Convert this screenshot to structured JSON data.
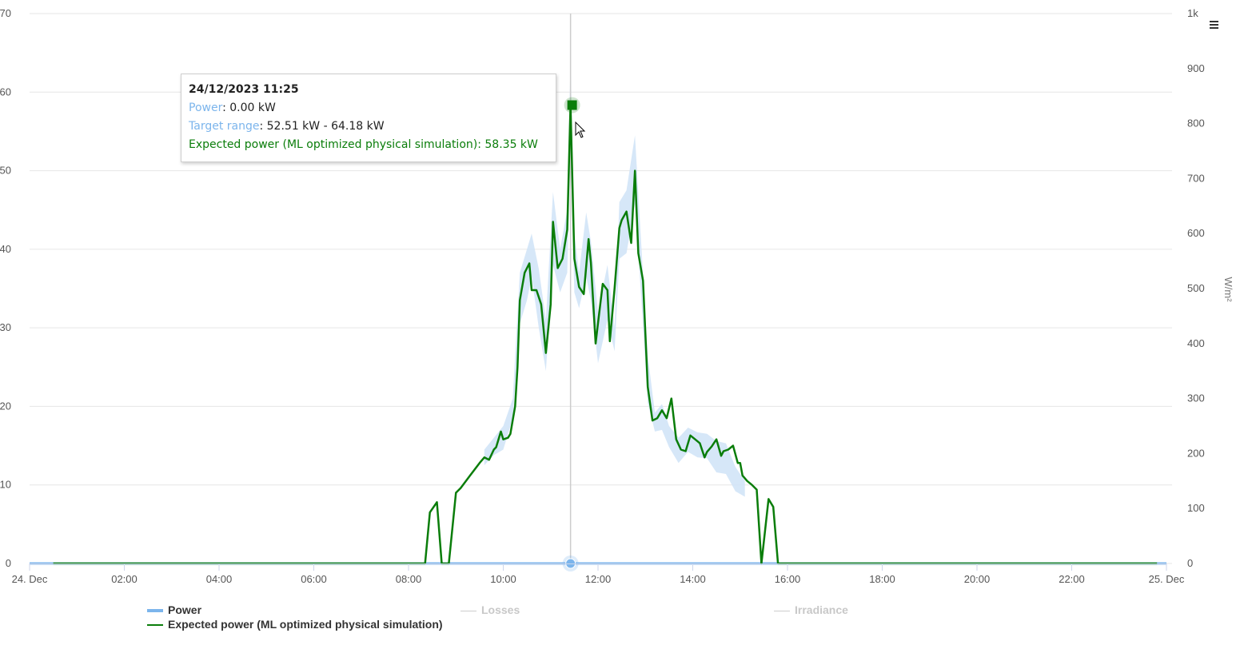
{
  "chart_data": {
    "type": "line",
    "x_axis": {
      "tick_labels": [
        "24. Dec",
        "02:00",
        "04:00",
        "06:00",
        "08:00",
        "10:00",
        "12:00",
        "14:00",
        "16:00",
        "18:00",
        "20:00",
        "22:00",
        "25. Dec"
      ],
      "range_hours": [
        0,
        24
      ]
    },
    "y_axis_left": {
      "ticks": [
        "0",
        "10",
        "20",
        "30",
        "40",
        "50",
        "60",
        "70"
      ],
      "range": [
        0,
        70
      ]
    },
    "y_axis_right": {
      "title": "W/m²",
      "ticks": [
        "0",
        "100",
        "200",
        "300",
        "400",
        "500",
        "600",
        "700",
        "800",
        "900",
        "1k"
      ],
      "range": [
        0,
        1000
      ]
    },
    "series": [
      {
        "name": "Expected power (ML optimized physical simulation)",
        "color": "#0a7d0a",
        "x_hours": [
          0.5,
          8.35,
          8.45,
          8.6,
          8.7,
          8.85,
          9.0,
          9.1,
          9.3,
          9.5,
          9.6,
          9.7,
          9.8,
          9.85,
          9.95,
          10.0,
          10.1,
          10.15,
          10.25,
          10.3,
          10.35,
          10.45,
          10.55,
          10.6,
          10.7,
          10.8,
          10.9,
          11.0,
          11.05,
          11.15,
          11.25,
          11.35,
          11.42,
          11.5,
          11.6,
          11.7,
          11.8,
          11.85,
          11.95,
          12.0,
          12.1,
          12.2,
          12.25,
          12.35,
          12.45,
          12.5,
          12.6,
          12.7,
          12.78,
          12.85,
          12.95,
          13.05,
          13.15,
          13.25,
          13.35,
          13.45,
          13.55,
          13.65,
          13.75,
          13.85,
          13.95,
          14.05,
          14.15,
          14.25,
          14.3,
          14.4,
          14.5,
          14.6,
          14.65,
          14.75,
          14.85,
          14.95,
          15.0,
          15.05,
          15.15,
          15.25,
          15.35,
          15.45,
          15.6,
          15.7,
          15.8,
          15.9,
          16.0,
          16.5,
          18.35,
          18.5,
          21.25,
          21.35,
          21.7,
          21.75,
          22.75,
          22.8,
          23.75,
          23.8
        ],
        "values": [
          0,
          0,
          6.5,
          7.8,
          0,
          0,
          9.0,
          9.6,
          11.2,
          12.8,
          13.5,
          13.2,
          14.5,
          14.8,
          16.8,
          15.8,
          16.0,
          16.5,
          20,
          25,
          33.5,
          37,
          38.2,
          34.8,
          34.8,
          33,
          26.8,
          33,
          43.5,
          37.6,
          38.8,
          42.5,
          58.3,
          38.8,
          35.2,
          34.3,
          41.3,
          38.3,
          28,
          30.6,
          35.6,
          34.8,
          28.3,
          35,
          42.7,
          43.7,
          44.8,
          40.8,
          50,
          39.5,
          36,
          22.5,
          18.2,
          18.5,
          19.5,
          18.5,
          21,
          15.8,
          14.5,
          14.3,
          16.3,
          15.8,
          15.3,
          13.5,
          14.2,
          14.9,
          15.8,
          13.7,
          14.3,
          14.5,
          15,
          12.8,
          12.8,
          11.2,
          10.5,
          10,
          9.4,
          0,
          8.2,
          7.2,
          0,
          0,
          0,
          0,
          0,
          0,
          0,
          0,
          0,
          0,
          0,
          0,
          0,
          0
        ]
      },
      {
        "name": "Power",
        "color": "#7cb5ec",
        "x_hours": [
          0,
          24
        ],
        "values": [
          0,
          0
        ]
      },
      {
        "name": "Losses",
        "color": "#cccccc"
      },
      {
        "name": "Irradiance",
        "color": "#cccccc"
      }
    ],
    "range_band": {
      "color": "#cfe3f7",
      "x_hours": [
        9.6,
        9.8,
        10.0,
        10.2,
        10.35,
        10.5,
        10.6,
        10.75,
        10.9,
        11.05,
        11.2,
        11.35,
        11.42,
        11.5,
        11.6,
        11.75,
        11.85,
        12.0,
        12.2,
        12.35,
        12.45,
        12.6,
        12.78,
        12.9,
        13.05,
        13.2,
        13.35,
        13.5,
        13.7,
        13.9,
        14.1,
        14.3,
        14.5,
        14.7,
        14.9,
        15.1
      ],
      "upper": [
        14.5,
        16,
        17.5,
        21,
        37,
        40,
        42,
        37.5,
        31,
        47.3,
        40,
        45,
        64.18,
        42,
        37,
        44.7,
        41,
        32,
        38,
        30,
        46,
        47.5,
        54.5,
        42,
        26.5,
        19.2,
        20.3,
        17.5,
        16,
        17.3,
        16.7,
        16.5,
        15.6,
        15.3,
        12.3,
        10.5
      ],
      "lower": [
        12.5,
        13.8,
        14.5,
        18.5,
        30.5,
        33.5,
        36.5,
        30,
        24.5,
        38,
        34.5,
        37,
        52.51,
        34.5,
        32.5,
        36.5,
        33.5,
        25.5,
        31,
        27,
        38.8,
        39.5,
        45.7,
        35,
        20.5,
        16.8,
        17,
        14.8,
        12.8,
        14.2,
        13.5,
        13.4,
        11.6,
        11.4,
        9.2,
        8.5
      ]
    },
    "crosshair_x_hours": 11.42,
    "grid": true,
    "legend_position": "bottom"
  },
  "tooltip": {
    "title": "24/12/2023 11:25",
    "power_label": "Power",
    "power_value": ": 0.00 kW",
    "range_label": "Target range",
    "range_value": ": 52.51 kW - 64.18 kW",
    "expected_label": "Expected power (ML optimized physical simulation)",
    "expected_value": ": 58.35 kW"
  },
  "legend": {
    "power": "Power",
    "expected": "Expected power (ML optimized physical simulation)",
    "losses": "Losses",
    "irradiance": "Irradiance"
  },
  "icons": {
    "menu": "hamburger-menu-icon",
    "cursor": "mouse-pointer-icon"
  }
}
